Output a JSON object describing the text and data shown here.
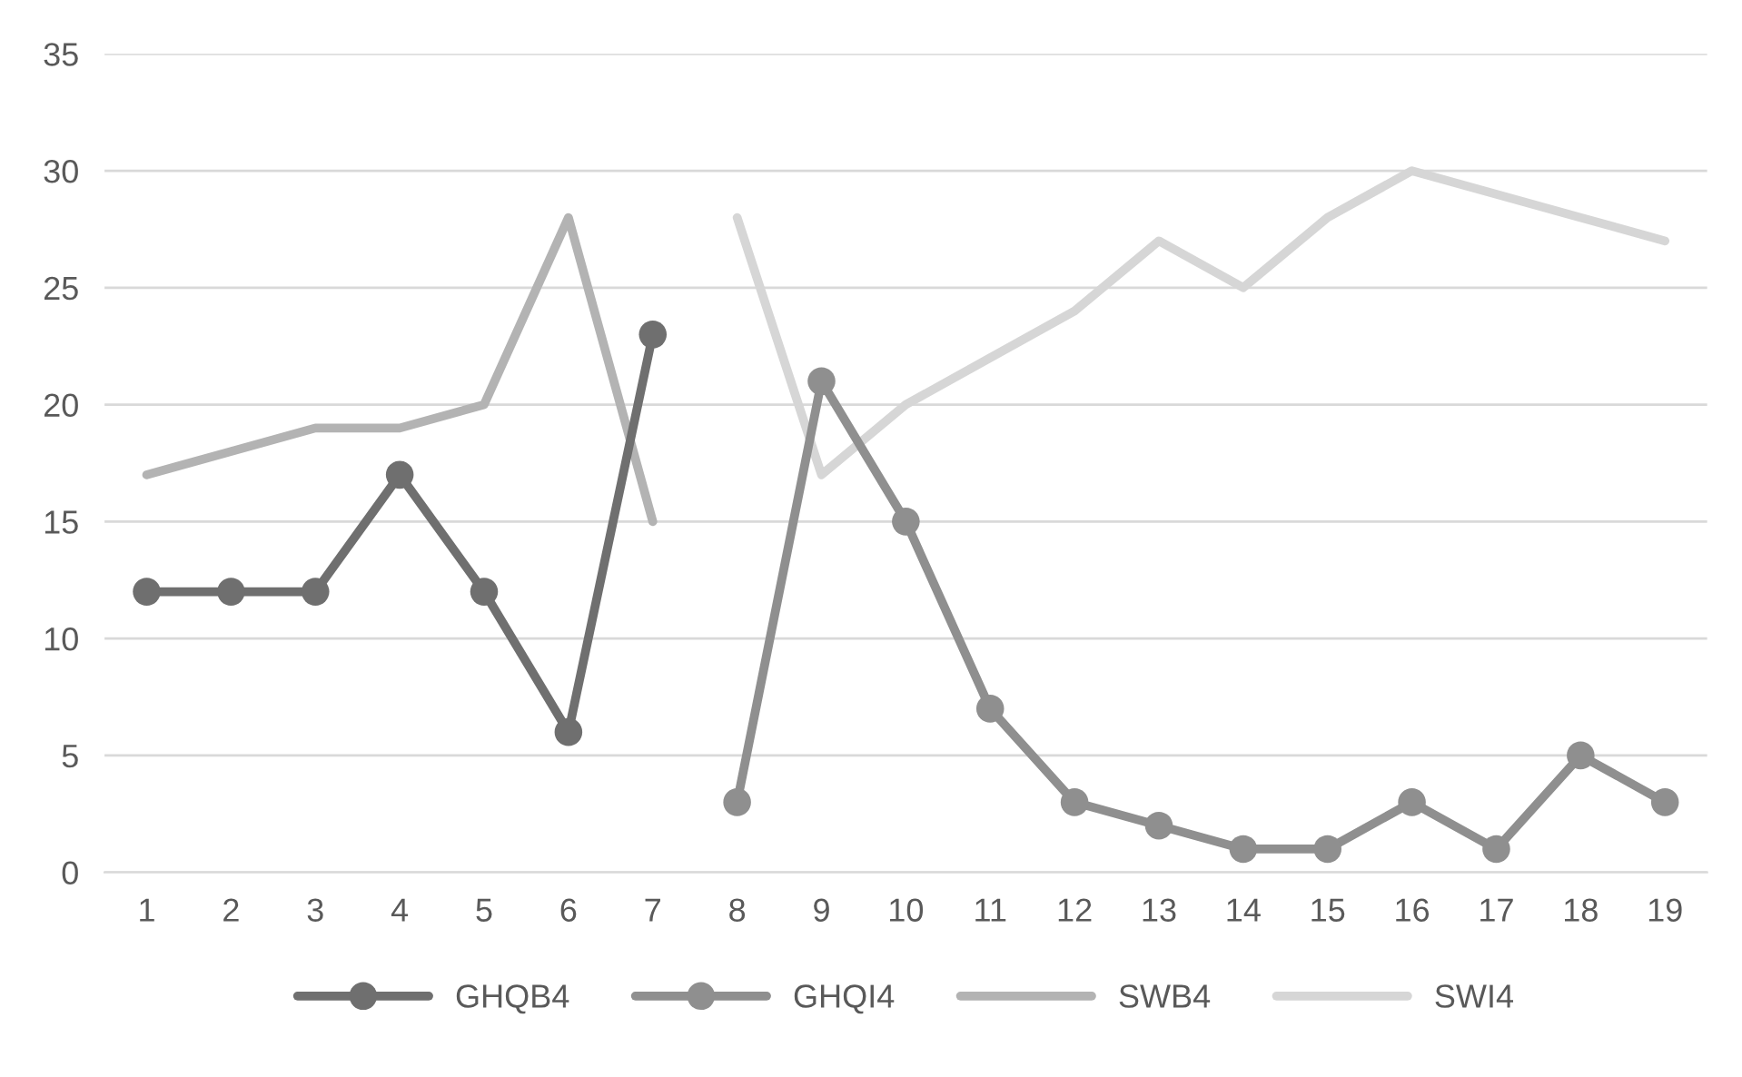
{
  "chart_data": {
    "type": "line",
    "categories": [
      "1",
      "2",
      "3",
      "4",
      "5",
      "6",
      "7",
      "8",
      "9",
      "10",
      "11",
      "12",
      "13",
      "14",
      "15",
      "16",
      "17",
      "18",
      "19"
    ],
    "series": [
      {
        "name": "GHQB4",
        "color": "#6f6f6f",
        "marker": "circle",
        "values": [
          12,
          12,
          12,
          17,
          12,
          6,
          23,
          null,
          null,
          null,
          null,
          null,
          null,
          null,
          null,
          null,
          null,
          null,
          null
        ]
      },
      {
        "name": "GHQI4",
        "color": "#8f8f8f",
        "marker": "circle",
        "values": [
          null,
          null,
          null,
          null,
          null,
          null,
          null,
          3,
          21,
          15,
          7,
          3,
          2,
          1,
          1,
          3,
          1,
          5,
          3
        ]
      },
      {
        "name": "SWB4",
        "color": "#b3b3b3",
        "marker": "none",
        "values": [
          17,
          18,
          19,
          19,
          20,
          28,
          15,
          null,
          null,
          null,
          null,
          null,
          null,
          null,
          null,
          null,
          null,
          null,
          null
        ]
      },
      {
        "name": "SWI4",
        "color": "#d6d6d6",
        "marker": "none",
        "values": [
          null,
          null,
          null,
          null,
          null,
          null,
          null,
          28,
          17,
          20,
          22,
          24,
          27,
          25,
          28,
          30,
          29,
          28,
          27
        ]
      }
    ],
    "ylim": [
      0,
      35
    ],
    "yticks": [
      0,
      5,
      10,
      15,
      20,
      25,
      30,
      35
    ],
    "grid": "y",
    "legend": "bottom",
    "line_style": "solid"
  }
}
